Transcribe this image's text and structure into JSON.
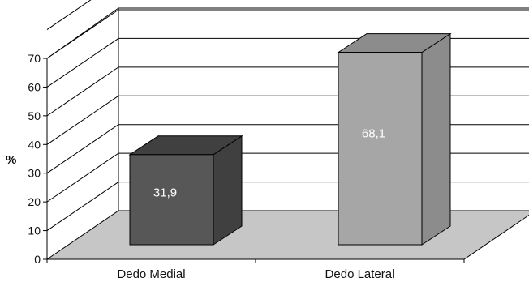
{
  "chart_data": {
    "type": "bar",
    "style": "3d-column",
    "categories": [
      "Dedo Medial",
      "Dedo Lateral"
    ],
    "values": [
      31.9,
      68.1
    ],
    "value_labels": [
      "31,9",
      "68,1"
    ],
    "ylabel": "%",
    "ylim": [
      0,
      70
    ],
    "yticks": [
      "0",
      "10",
      "20",
      "30",
      "40",
      "50",
      "60",
      "70"
    ],
    "grid": true,
    "legend": "none",
    "colors": {
      "bars": [
        "#575757",
        "#a6a6a6"
      ],
      "bar_tops": [
        "#404040",
        "#8c8c8c"
      ],
      "bar_sides": [
        "#404040",
        "#8c8c8c"
      ],
      "floor": "#c6c6c6",
      "lines": "#000000"
    }
  }
}
